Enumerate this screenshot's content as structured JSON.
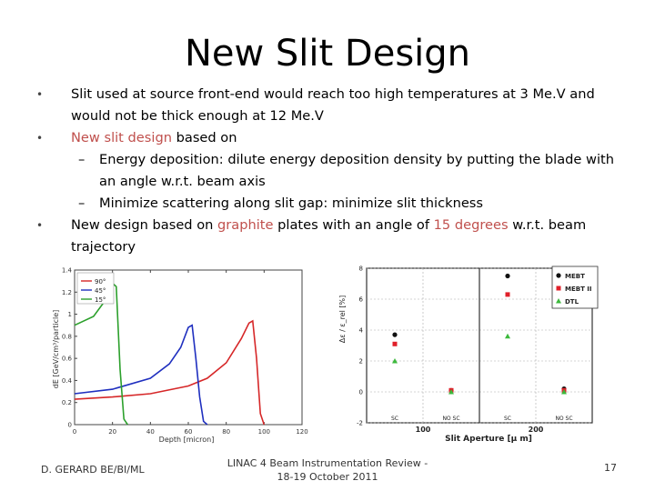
{
  "title": "New Slit Design",
  "bullets": {
    "b1": "Slit used at source front-end would reach too high temperatures at 3 Me.V and would not be thick enough at 12 Me.V",
    "b2_hl": "New slit design",
    "b2_rest": " based on",
    "s1": "Energy deposition: dilute energy deposition density by putting the blade with an angle w.r.t. beam axis",
    "s2": "Minimize scattering along slit gap: minimize slit thickness",
    "b3_a": "New design based on ",
    "b3_hl1": "graphite",
    "b3_b": " plates with an angle of ",
    "b3_hl2": "15 degrees",
    "b3_c": " w.r.t. beam trajectory",
    "bullet_glyph": "•",
    "dash_glyph": "–"
  },
  "footer": {
    "left": "D. GERARD  BE/BI/ML",
    "center_line1": "LINAC 4 Beam Instrumentation Review -",
    "center_line2": "18-19 October 2011",
    "page": "17"
  },
  "colors": {
    "accent": "#c0504d"
  },
  "chart_data": [
    {
      "type": "line",
      "xlabel": "Depth [micron]",
      "ylabel": "dE [GeV/cm³/particle]",
      "xlim": [
        0,
        120
      ],
      "ylim": [
        0,
        1.4
      ],
      "x_ticks": [
        "0",
        "20",
        "40",
        "60",
        "80",
        "100",
        "120"
      ],
      "y_ticks": [
        "0",
        "0.2",
        "0.4",
        "0.6",
        "0.8",
        "1",
        "1.2",
        "1.4"
      ],
      "legend": "top-left",
      "series": [
        {
          "name": "90°",
          "color": "#d62728",
          "x": [
            0,
            20,
            40,
            60,
            70,
            80,
            88,
            92,
            94,
            96,
            98,
            100
          ],
          "y": [
            0.23,
            0.25,
            0.28,
            0.35,
            0.42,
            0.56,
            0.78,
            0.92,
            0.94,
            0.6,
            0.1,
            0
          ]
        },
        {
          "name": "45°",
          "color": "#1f2fbf",
          "x": [
            0,
            20,
            40,
            50,
            56,
            60,
            62,
            64,
            66,
            68,
            70
          ],
          "y": [
            0.28,
            0.32,
            0.42,
            0.55,
            0.7,
            0.88,
            0.9,
            0.6,
            0.25,
            0.03,
            0
          ]
        },
        {
          "name": "15°",
          "color": "#2ca02c",
          "x": [
            0,
            10,
            16,
            20,
            22,
            24,
            26,
            28
          ],
          "y": [
            0.9,
            0.98,
            1.12,
            1.28,
            1.25,
            0.5,
            0.05,
            0
          ]
        }
      ]
    },
    {
      "type": "scatter",
      "xlabel": "Slit Aperture [μ m]",
      "ylabel": "Δε / ε_rel [%]",
      "categories": [
        "SC",
        "NO SC",
        "SC",
        "NO SC"
      ],
      "x_ticks": [
        "100",
        "200"
      ],
      "y_ticks": [
        "-2",
        "0",
        "2",
        "4",
        "6",
        "8"
      ],
      "ylim": [
        -2,
        8
      ],
      "grid": true,
      "legend": "top-right",
      "series": [
        {
          "name": "MEBT",
          "color": "#111111",
          "marker": "circle",
          "values": [
            3.7,
            0.1,
            7.5,
            0.2
          ]
        },
        {
          "name": "MEBT II",
          "color": "#e0202a",
          "marker": "square",
          "values": [
            3.1,
            0.1,
            6.3,
            0.1
          ]
        },
        {
          "name": "DTL",
          "color": "#3cb93c",
          "marker": "triangle",
          "values": [
            2.0,
            0.0,
            3.6,
            0.0
          ]
        }
      ]
    }
  ]
}
